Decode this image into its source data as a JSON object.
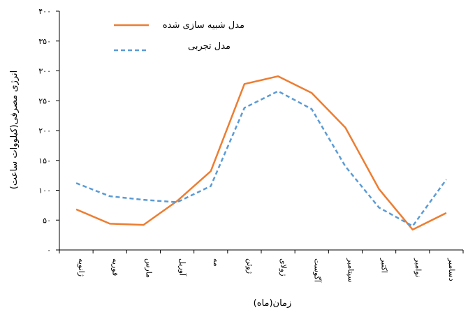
{
  "chart_data": {
    "type": "line",
    "title": "",
    "xlabel": "زمان(ماه)",
    "ylabel": "انرژی مصرفی(کیلووات ساعت)",
    "ylim": [
      0,
      400
    ],
    "yticks": [
      "۰",
      "۵۰",
      "۱۰۰",
      "۱۵۰",
      "۲۰۰",
      "۲۵۰",
      "۳۰۰",
      "۳۵۰",
      "۴۰۰"
    ],
    "ytick_values": [
      0,
      50,
      100,
      150,
      200,
      250,
      300,
      350,
      400
    ],
    "categories": [
      "ژانویه",
      "فوریه",
      "مارس",
      "آوریل",
      "مه",
      "ژوئن",
      "ژولای",
      "آگوست",
      "سپتامبر",
      "اکتبر",
      "نوامبر",
      "دسامبر"
    ],
    "grid": false,
    "legend_position": "top-left",
    "series": [
      {
        "name": "مدل شبیه سازی شده",
        "color": "#ED7D31",
        "style": "solid",
        "values": [
          68,
          44,
          42,
          82,
          132,
          278,
          291,
          263,
          205,
          102,
          34,
          62
        ]
      },
      {
        "name": "مدل تجربی",
        "color": "#5B9BD5",
        "style": "dashed",
        "values": [
          112,
          90,
          84,
          80,
          107,
          238,
          266,
          236,
          140,
          71,
          40,
          118
        ]
      }
    ]
  }
}
